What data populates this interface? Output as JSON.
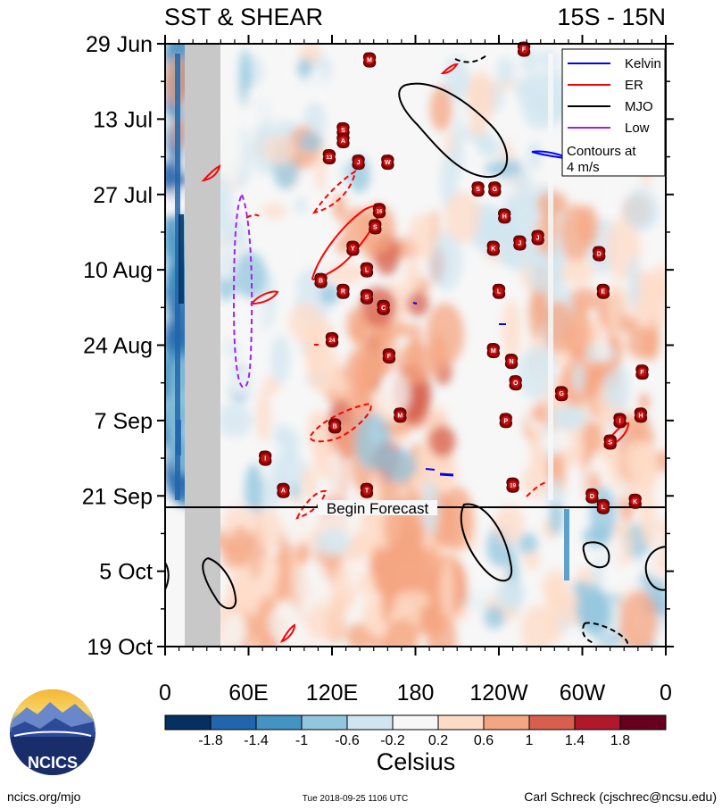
{
  "header": {
    "title": "SST & SHEAR",
    "region": "15S - 15N"
  },
  "footer": {
    "site": "ncics.org/mjo",
    "timestamp": "Tue 2018-09-25 1106 UTC",
    "author": "Carl Schreck (cjschrec@ncsu.edu)",
    "logo_text": "NCICS"
  },
  "forecast_label": "Begin Forecast",
  "legend": {
    "items": [
      {
        "label": "Kelvin",
        "color": "#0000ff",
        "dash": false
      },
      {
        "label": "ER",
        "color": "#ff0000",
        "dash": false
      },
      {
        "label": "MJO",
        "color": "#000000",
        "dash": false
      },
      {
        "label": "Low",
        "color": "#a020f0",
        "dash": false
      }
    ],
    "note_line1": "Contours at",
    "note_line2": "4 m/s"
  },
  "colorbar": {
    "unit": "Celsius",
    "tick_labels": [
      "-1.8",
      "-1.4",
      "-1",
      "-0.6",
      "-0.2",
      "0.2",
      "0.6",
      "1",
      "1.4",
      "1.8"
    ],
    "colors": [
      "#053061",
      "#2166ac",
      "#4393c3",
      "#92c5de",
      "#d1e5f0",
      "#f7f7f7",
      "#fddbc7",
      "#f4a582",
      "#d6604d",
      "#b2182b",
      "#67001f"
    ]
  },
  "chart_data": {
    "type": "heatmap",
    "title": "SST & SHEAR",
    "x_label": "",
    "y_label": "",
    "x_ticks": [
      "0",
      "60E",
      "120E",
      "180",
      "120W",
      "60W",
      "0"
    ],
    "y_ticks": [
      "29 Jun",
      "13 Jul",
      "27 Jul",
      "10 Aug",
      "24 Aug",
      "7 Sep",
      "21 Sep",
      "5 Oct",
      "19 Oct"
    ],
    "x_range_lon": [
      0,
      360
    ],
    "y_range_days_start": "29 Jun",
    "forecast_start": "2018-09-23",
    "land_band_lon": [
      15,
      40
    ],
    "cyclones": [
      {
        "id": "F",
        "lon": 258,
        "date": "2018-06-30"
      },
      {
        "id": "M",
        "lon": 147,
        "date": "2018-07-02"
      },
      {
        "id": "S",
        "lon": 128,
        "date": "2018-07-15"
      },
      {
        "id": "A",
        "lon": 128,
        "date": "2018-07-17"
      },
      {
        "id": "13",
        "lon": 118,
        "date": "2018-07-20"
      },
      {
        "id": "J",
        "lon": 139,
        "date": "2018-07-21"
      },
      {
        "id": "W",
        "lon": 160,
        "date": "2018-07-21"
      },
      {
        "id": "S",
        "lon": 225,
        "date": "2018-07-26"
      },
      {
        "id": "G",
        "lon": 237,
        "date": "2018-07-26"
      },
      {
        "id": "16",
        "lon": 154,
        "date": "2018-07-30"
      },
      {
        "id": "S",
        "lon": 151,
        "date": "2018-08-02"
      },
      {
        "id": "H",
        "lon": 244,
        "date": "2018-07-31"
      },
      {
        "id": "K",
        "lon": 236,
        "date": "2018-08-06"
      },
      {
        "id": "J",
        "lon": 255,
        "date": "2018-08-05"
      },
      {
        "id": "J",
        "lon": 268,
        "date": "2018-08-04"
      },
      {
        "id": "D",
        "lon": 312,
        "date": "2018-08-07"
      },
      {
        "id": "Y",
        "lon": 135,
        "date": "2018-08-06"
      },
      {
        "id": "L",
        "lon": 145,
        "date": "2018-08-10"
      },
      {
        "id": "B",
        "lon": 112,
        "date": "2018-08-12"
      },
      {
        "id": "R",
        "lon": 128,
        "date": "2018-08-14"
      },
      {
        "id": "S",
        "lon": 145,
        "date": "2018-08-15"
      },
      {
        "id": "C",
        "lon": 157,
        "date": "2018-08-17"
      },
      {
        "id": "L",
        "lon": 240,
        "date": "2018-08-14"
      },
      {
        "id": "E",
        "lon": 315,
        "date": "2018-08-14"
      },
      {
        "id": "24",
        "lon": 120,
        "date": "2018-08-23"
      },
      {
        "id": "M",
        "lon": 236,
        "date": "2018-08-25"
      },
      {
        "id": "N",
        "lon": 249,
        "date": "2018-08-27"
      },
      {
        "id": "F",
        "lon": 161,
        "date": "2018-08-26"
      },
      {
        "id": "F",
        "lon": 343,
        "date": "2018-08-29"
      },
      {
        "id": "O",
        "lon": 252,
        "date": "2018-08-31"
      },
      {
        "id": "G",
        "lon": 285,
        "date": "2018-09-02"
      },
      {
        "id": "M",
        "lon": 169,
        "date": "2018-09-06"
      },
      {
        "id": "P",
        "lon": 245,
        "date": "2018-09-07"
      },
      {
        "id": "H",
        "lon": 342,
        "date": "2018-09-06"
      },
      {
        "id": "B",
        "lon": 122,
        "date": "2018-09-08"
      },
      {
        "id": "I",
        "lon": 327,
        "date": "2018-09-07"
      },
      {
        "id": "S",
        "lon": 320,
        "date": "2018-09-11"
      },
      {
        "id": "I",
        "lon": 72,
        "date": "2018-09-14"
      },
      {
        "id": "19",
        "lon": 250,
        "date": "2018-09-19"
      },
      {
        "id": "A",
        "lon": 85,
        "date": "2018-09-20"
      },
      {
        "id": "T",
        "lon": 145,
        "date": "2018-09-20"
      },
      {
        "id": "D",
        "lon": 307,
        "date": "2018-09-21"
      },
      {
        "id": "L",
        "lon": 315,
        "date": "2018-09-23"
      },
      {
        "id": "K",
        "lon": 338,
        "date": "2018-09-22"
      }
    ]
  }
}
